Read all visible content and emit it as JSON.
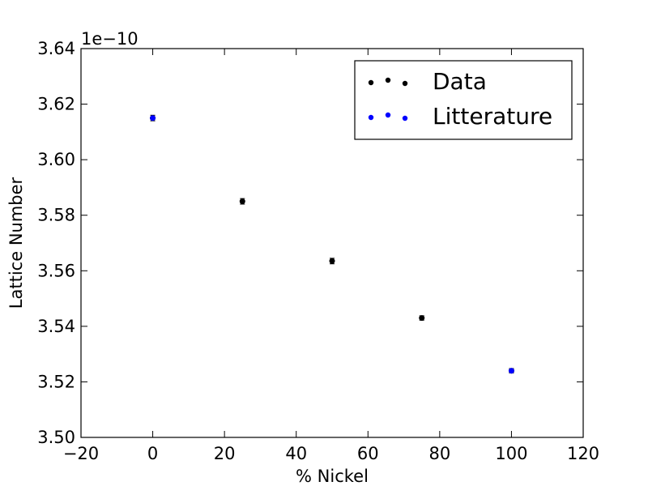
{
  "chart_data": {
    "type": "scatter",
    "xlabel": "% Nickel",
    "ylabel": "Lattice Number",
    "y_offset_label": "1e−10",
    "xlim": [
      -20,
      120
    ],
    "ylim": [
      3.5,
      3.64
    ],
    "x_ticks": [
      -20,
      0,
      20,
      40,
      60,
      80,
      100,
      120
    ],
    "y_ticks": [
      3.5,
      3.52,
      3.54,
      3.56,
      3.58,
      3.6,
      3.62,
      3.64
    ],
    "x_tick_labels": [
      "−20",
      "0",
      "20",
      "40",
      "60",
      "80",
      "100",
      "120"
    ],
    "y_tick_labels": [
      "3.50",
      "3.52",
      "3.54",
      "3.56",
      "3.58",
      "3.60",
      "3.62",
      "3.64"
    ],
    "grid": false,
    "legend_position": "top-right",
    "series": [
      {
        "name": "Data",
        "color": "#000000",
        "points": [
          {
            "x": 0,
            "y": 3.615,
            "err": 0.001
          },
          {
            "x": 25,
            "y": 3.585,
            "err": 0.001
          },
          {
            "x": 50,
            "y": 3.5635,
            "err": 0.001
          },
          {
            "x": 75,
            "y": 3.543,
            "err": 0.0008
          },
          {
            "x": 100,
            "y": 3.524,
            "err": 0.0008
          }
        ]
      },
      {
        "name": "Litterature",
        "color": "#0000ff",
        "points": [
          {
            "x": 0,
            "y": 3.615
          },
          {
            "x": 100,
            "y": 3.524
          }
        ]
      }
    ]
  }
}
